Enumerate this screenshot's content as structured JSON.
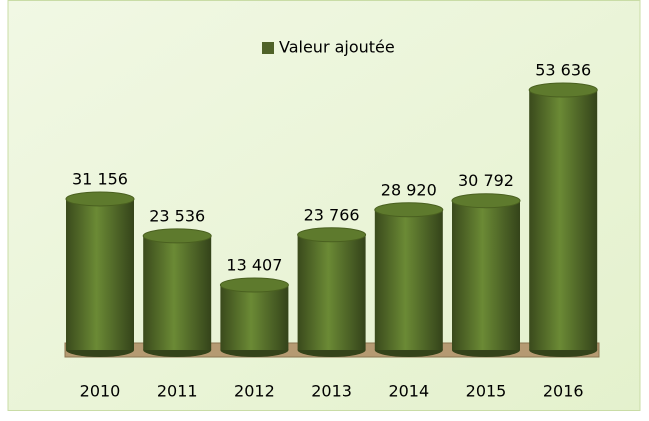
{
  "chart_data": {
    "type": "bar",
    "categories": [
      "2010",
      "2011",
      "2012",
      "2013",
      "2014",
      "2015",
      "2016"
    ],
    "series": [
      {
        "name": "Valeur ajoutée",
        "color": "#4f6228",
        "values": [
          31156,
          23536,
          13407,
          23766,
          28920,
          30792,
          53636
        ],
        "value_labels": [
          "31 156",
          "23 536",
          "13 407",
          "23 766",
          "28 920",
          "30 792",
          "53 636"
        ]
      }
    ],
    "legend": "top"
  }
}
